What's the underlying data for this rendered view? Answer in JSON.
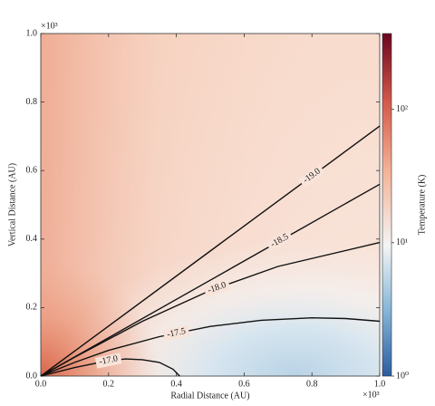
{
  "chart_data": {
    "type": "contour",
    "x_label": "Radial Distance (AU)",
    "y_label": "Vertical Distance (AU)",
    "x_offset_label": "×10³",
    "y_offset_label": "×10³",
    "xlim": [
      0,
      1
    ],
    "ylim": [
      0,
      1
    ],
    "xticks": [
      {
        "value": 0,
        "label": "0.0"
      },
      {
        "value": 0.2,
        "label": "0.2"
      },
      {
        "value": 0.4,
        "label": "0.4"
      },
      {
        "value": 0.6,
        "label": "0.6"
      },
      {
        "value": 0.8,
        "label": "0.8"
      },
      {
        "value": 1,
        "label": "1.0"
      }
    ],
    "yticks": [
      {
        "value": 0,
        "label": "0.0"
      },
      {
        "value": 0.2,
        "label": "0.2"
      },
      {
        "value": 0.4,
        "label": "0.4"
      },
      {
        "value": 0.6,
        "label": "0.6"
      },
      {
        "value": 0.8,
        "label": "0.8"
      },
      {
        "value": 1,
        "label": "1.0"
      }
    ],
    "colorbar_label": "Temperature (K)",
    "clim": [
      1,
      370
    ],
    "colorbar_log": true,
    "colorbar_ticks": [
      {
        "value": 1,
        "label": "10⁰"
      },
      {
        "value": 10,
        "label": "10¹"
      },
      {
        "value": 100,
        "label": "10²"
      }
    ],
    "contour_color": "#111111",
    "contour_levels": [
      -19,
      -18.5,
      -18,
      -17.5,
      -17
    ],
    "value_labels": [
      "-19.0",
      "-18.5",
      "-18.0",
      "-17.5",
      "-17.0"
    ],
    "contours": [
      {
        "x": [
          0,
          0.5,
          1.0
        ],
        "y": [
          0,
          0.365,
          0.73
        ]
      },
      {
        "x": [
          0,
          0.5,
          1.0
        ],
        "y": [
          0,
          0.28,
          0.56
        ]
      },
      {
        "x": [
          0,
          0.1,
          0.3,
          0.5,
          0.7,
          1.0
        ],
        "y": [
          0,
          0.055,
          0.16,
          0.25,
          0.32,
          0.39
        ]
      },
      {
        "x": [
          0,
          0.1,
          0.2,
          0.35,
          0.5,
          0.65,
          0.8,
          0.9,
          1.0
        ],
        "y": [
          0,
          0.04,
          0.075,
          0.115,
          0.145,
          0.163,
          0.17,
          0.168,
          0.16
        ]
      },
      {
        "x": [
          0,
          0.1,
          0.2,
          0.25,
          0.3,
          0.35,
          0.39,
          0.41
        ],
        "y": [
          0,
          0.025,
          0.045,
          0.05,
          0.048,
          0.04,
          0.02,
          0
        ]
      }
    ]
  }
}
